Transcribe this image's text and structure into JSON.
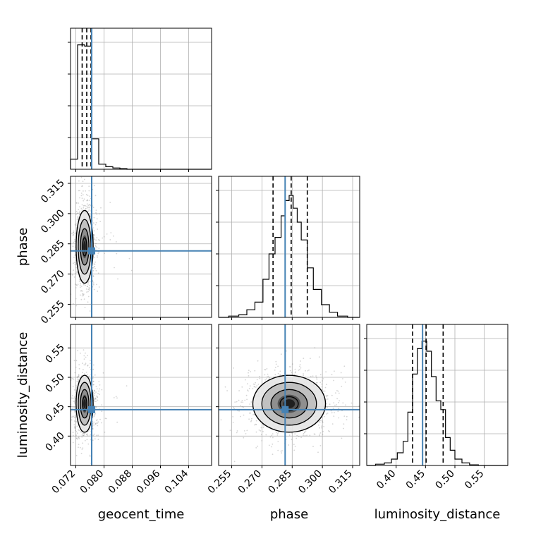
{
  "chart_data": {
    "type": "corner",
    "parameters": [
      "geocent_time",
      "phase",
      "luminosity_distance"
    ],
    "axis_labels": {
      "geocent_time": "geocent_time",
      "phase": "phase",
      "luminosity_distance": "luminosity_distance"
    },
    "injection": {
      "geocent_time": 0.0765,
      "phase": 0.2815,
      "luminosity_distance": 0.445
    },
    "xlim": {
      "geocent_time": [
        0.0705,
        0.1105
      ],
      "phase": [
        0.2485,
        0.3185
      ],
      "luminosity_distance": [
        0.35,
        0.59
      ]
    },
    "ticks": {
      "geocent_time": [
        "0.072",
        "0.080",
        "0.088",
        "0.096",
        "0.104"
      ],
      "phase": [
        "0.255",
        "0.270",
        "0.285",
        "0.300",
        "0.315"
      ],
      "luminosity_distance": [
        "0.40",
        "0.45",
        "0.50",
        "0.55"
      ]
    },
    "marginal_quantiles": {
      "geocent_time": [
        0.0738,
        0.0751,
        0.0763
      ],
      "phase": [
        0.2755,
        0.2845,
        0.2925
      ],
      "luminosity_distance": [
        0.428,
        0.451,
        0.48
      ]
    },
    "histograms": {
      "geocent_time": {
        "edges": [
          0.0705,
          0.0725,
          0.0745,
          0.0765,
          0.0785,
          0.0805,
          0.0825,
          0.0845,
          0.0865,
          0.1105
        ],
        "counts": [
          0.08,
          0.98,
          0.97,
          0.24,
          0.04,
          0.02,
          0.01,
          0.005,
          0.0
        ]
      },
      "phase": {
        "edges": [
          0.2485,
          0.2535,
          0.2585,
          0.2625,
          0.2665,
          0.2705,
          0.2735,
          0.2765,
          0.2795,
          0.2815,
          0.2835,
          0.2855,
          0.2875,
          0.2895,
          0.2925,
          0.2955,
          0.2995,
          0.3035,
          0.3075,
          0.3125,
          0.3185
        ],
        "counts": [
          0.0,
          0.01,
          0.02,
          0.06,
          0.12,
          0.3,
          0.5,
          0.63,
          0.8,
          0.92,
          0.96,
          0.86,
          0.75,
          0.61,
          0.39,
          0.22,
          0.1,
          0.04,
          0.01,
          0.0
        ]
      },
      "luminosity_distance": {
        "edges": [
          0.35,
          0.365,
          0.38,
          0.392,
          0.402,
          0.412,
          0.42,
          0.428,
          0.436,
          0.444,
          0.452,
          0.46,
          0.468,
          0.476,
          0.484,
          0.492,
          0.5,
          0.512,
          0.525,
          0.54,
          0.59
        ],
        "counts": [
          0.0,
          0.01,
          0.02,
          0.05,
          0.1,
          0.19,
          0.42,
          0.72,
          0.92,
          0.98,
          0.9,
          0.7,
          0.51,
          0.44,
          0.22,
          0.12,
          0.05,
          0.02,
          0.005,
          0.0
        ]
      }
    },
    "joint_distributions": [
      {
        "x": "geocent_time",
        "y": "phase",
        "mean": [
          0.0745,
          0.2835
        ],
        "std": [
          0.0011,
          0.0082
        ]
      },
      {
        "x": "geocent_time",
        "y": "luminosity_distance",
        "mean": [
          0.0745,
          0.455
        ],
        "std": [
          0.0011,
          0.022
        ]
      },
      {
        "x": "phase",
        "y": "luminosity_distance",
        "mean": [
          0.2835,
          0.455
        ],
        "std": [
          0.0082,
          0.022
        ]
      }
    ],
    "contour_levels_sigma": [
      0.5,
      1.0,
      1.5,
      2.0
    ],
    "grid": true,
    "injection_color": "#4682b4",
    "hist_color": "#000000"
  }
}
